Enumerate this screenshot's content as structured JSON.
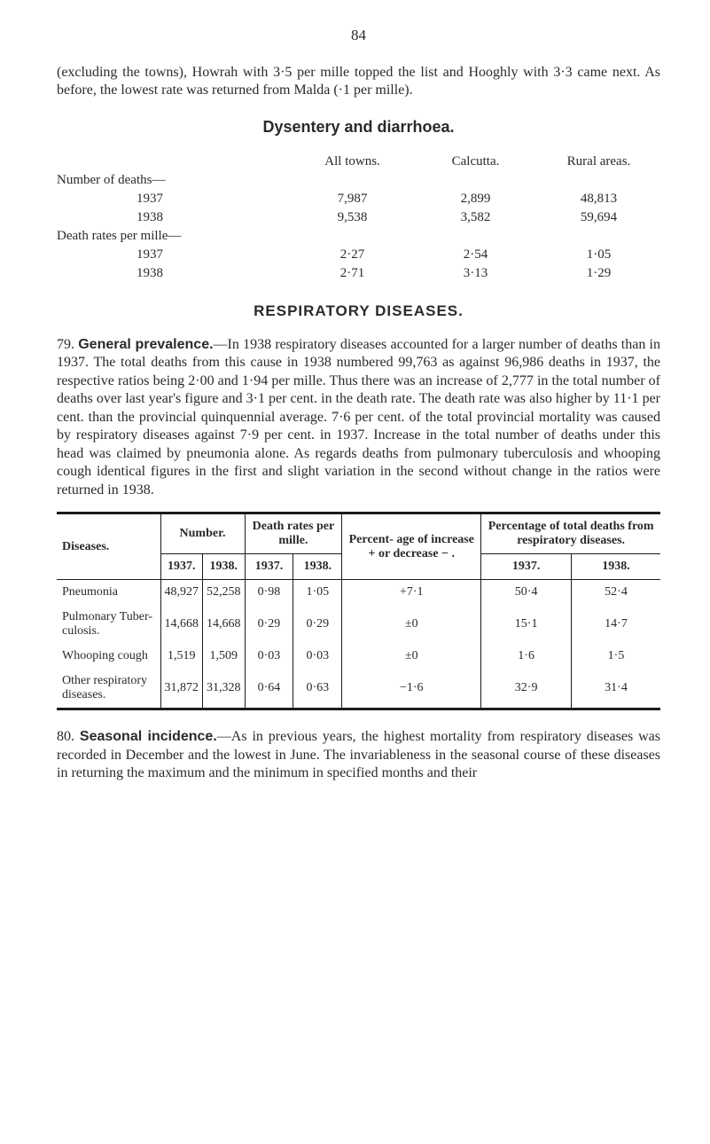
{
  "page_number": "84",
  "intro": "(excluding the towns), Howrah with 3·5 per mille topped the list and Hooghly with 3·3 came next. As before, the lowest rate was returned from Malda (·1 per mille).",
  "sec1_title": "Dysentery and diarrhoea.",
  "t1": {
    "headers": {
      "c2": "All towns.",
      "c3": "Calcutta.",
      "c4": "Rural areas."
    },
    "group1_label": "Number of deaths—",
    "group1_rows": [
      {
        "year": "1937",
        "dots": ". .",
        "a": "7,987",
        "b": "2,899",
        "c": "48,813"
      },
      {
        "year": "1938",
        "dots": ". .",
        "a": "9,538",
        "b": "3,582",
        "c": "59,694"
      }
    ],
    "group2_label": "Death rates per mille—",
    "group2_rows": [
      {
        "year": "1937",
        "dots": ". .",
        "a": "2·27",
        "b": "2·54",
        "c": "1·05"
      },
      {
        "year": "1938",
        "dots": ". .",
        "a": "2·71",
        "b": "3·13",
        "c": "1·29"
      }
    ]
  },
  "sec2_title": "RESPIRATORY DISEASES.",
  "para79_num": "79.",
  "para79_runin": "General prevalence.",
  "para79_body": "—In 1938 respiratory diseases accounted for a larger number of deaths than in 1937. The total deaths from this cause in 1938 numbered 99,763 as against 96,986 deaths in 1937, the respective ratios being 2·00 and 1·94 per mille. Thus there was an increase of 2,777 in the total number of deaths over last year's figure and 3·1 per cent. in the death rate. The death rate was also higher by 11·1 per cent. than the provincial quinquennial average. 7·6 per cent. of the total provincial mortality was caused by respiratory diseases against 7·9 per cent. in 1937. Increase in the total number of deaths under this head was claimed by pneumonia alone. As regards deaths from pulmonary tuberculosis and whooping cough identical figures in the first and slight variation in the second without change in the ratios were returned in 1938.",
  "t2": {
    "h_d": "Diseases.",
    "h_n": "Number.",
    "h_dr": "Death rates per mille.",
    "h_p": "Percent- age of increase + or decrease − .",
    "h_pc": "Percentage of total deaths from respiratory diseases.",
    "y37": "1937.",
    "y38": "1938.",
    "rows": [
      {
        "d": "Pneumonia",
        "n37": "48,927",
        "n38": "52,258",
        "r37": "0·98",
        "r38": "1·05",
        "p": "+7·1",
        "pc37": "50·4",
        "pc38": "52·4"
      },
      {
        "d": "Pulmonary Tuber- culosis.",
        "n37": "14,668",
        "n38": "14,668",
        "r37": "0·29",
        "r38": "0·29",
        "p": "±0",
        "pc37": "15·1",
        "pc38": "14·7"
      },
      {
        "d": "Whooping cough",
        "n37": "1,519",
        "n38": "1,509",
        "r37": "0·03",
        "r38": "0·03",
        "p": "±0",
        "pc37": "1·6",
        "pc38": "1·5"
      },
      {
        "d": "Other respiratory diseases.",
        "n37": "31,872",
        "n38": "31,328",
        "r37": "0·64",
        "r38": "0·63",
        "p": "−1·6",
        "pc37": "32·9",
        "pc38": "31·4"
      }
    ]
  },
  "para80_num": "80.",
  "para80_runin": "Seasonal incidence.",
  "para80_body": "—As in previous years, the highest mortality from respiratory diseases was recorded in December and the lowest in June. The invariableness in the seasonal course of these diseases in returning the maximum and the minimum in specified months and their"
}
